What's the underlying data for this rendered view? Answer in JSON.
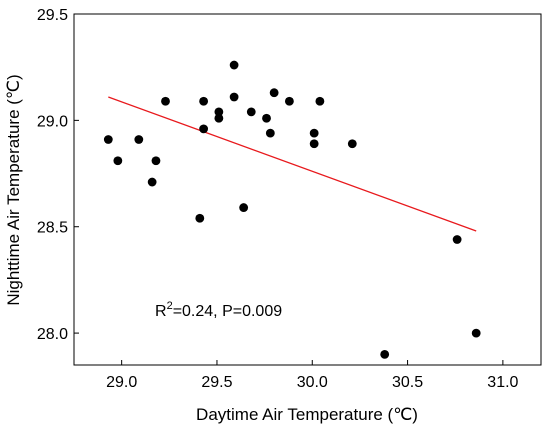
{
  "chart_data": {
    "type": "scatter",
    "title": "",
    "xlabel": "Daytime Air Temperature (℃)",
    "ylabel": "Nighttime Air Temperature (℃)",
    "xlim": [
      28.75,
      31.2
    ],
    "ylim": [
      27.85,
      29.5
    ],
    "x_ticks": [
      "29.0",
      "29.5",
      "30.0",
      "30.5",
      "31.0"
    ],
    "y_ticks": [
      "28.0",
      "28.5",
      "29.0",
      "29.5"
    ],
    "points": [
      {
        "x": 28.93,
        "y": 28.91
      },
      {
        "x": 28.98,
        "y": 28.81
      },
      {
        "x": 29.09,
        "y": 28.91
      },
      {
        "x": 29.16,
        "y": 28.71
      },
      {
        "x": 29.18,
        "y": 28.81
      },
      {
        "x": 29.23,
        "y": 29.09
      },
      {
        "x": 29.41,
        "y": 28.54
      },
      {
        "x": 29.43,
        "y": 29.09
      },
      {
        "x": 29.43,
        "y": 28.96
      },
      {
        "x": 29.51,
        "y": 29.04
      },
      {
        "x": 29.51,
        "y": 29.01
      },
      {
        "x": 29.59,
        "y": 29.26
      },
      {
        "x": 29.59,
        "y": 29.11
      },
      {
        "x": 29.64,
        "y": 28.59
      },
      {
        "x": 29.68,
        "y": 29.04
      },
      {
        "x": 29.76,
        "y": 29.01
      },
      {
        "x": 29.78,
        "y": 28.94
      },
      {
        "x": 29.8,
        "y": 29.13
      },
      {
        "x": 29.88,
        "y": 29.09
      },
      {
        "x": 30.01,
        "y": 28.94
      },
      {
        "x": 30.01,
        "y": 28.89
      },
      {
        "x": 30.04,
        "y": 29.09
      },
      {
        "x": 30.21,
        "y": 28.89
      },
      {
        "x": 30.38,
        "y": 27.9
      },
      {
        "x": 30.76,
        "y": 28.44
      },
      {
        "x": 30.86,
        "y": 28.0
      }
    ],
    "fit_line": {
      "x": [
        28.93,
        30.86
      ],
      "y": [
        29.11,
        28.48
      ],
      "color": "#e8191d"
    },
    "annotation": {
      "r2_prefix": "R",
      "r2_sup": "2",
      "text_after": "=0.24, P=0.009"
    },
    "marker_color": "#000000",
    "grid": false,
    "legend": "none"
  }
}
